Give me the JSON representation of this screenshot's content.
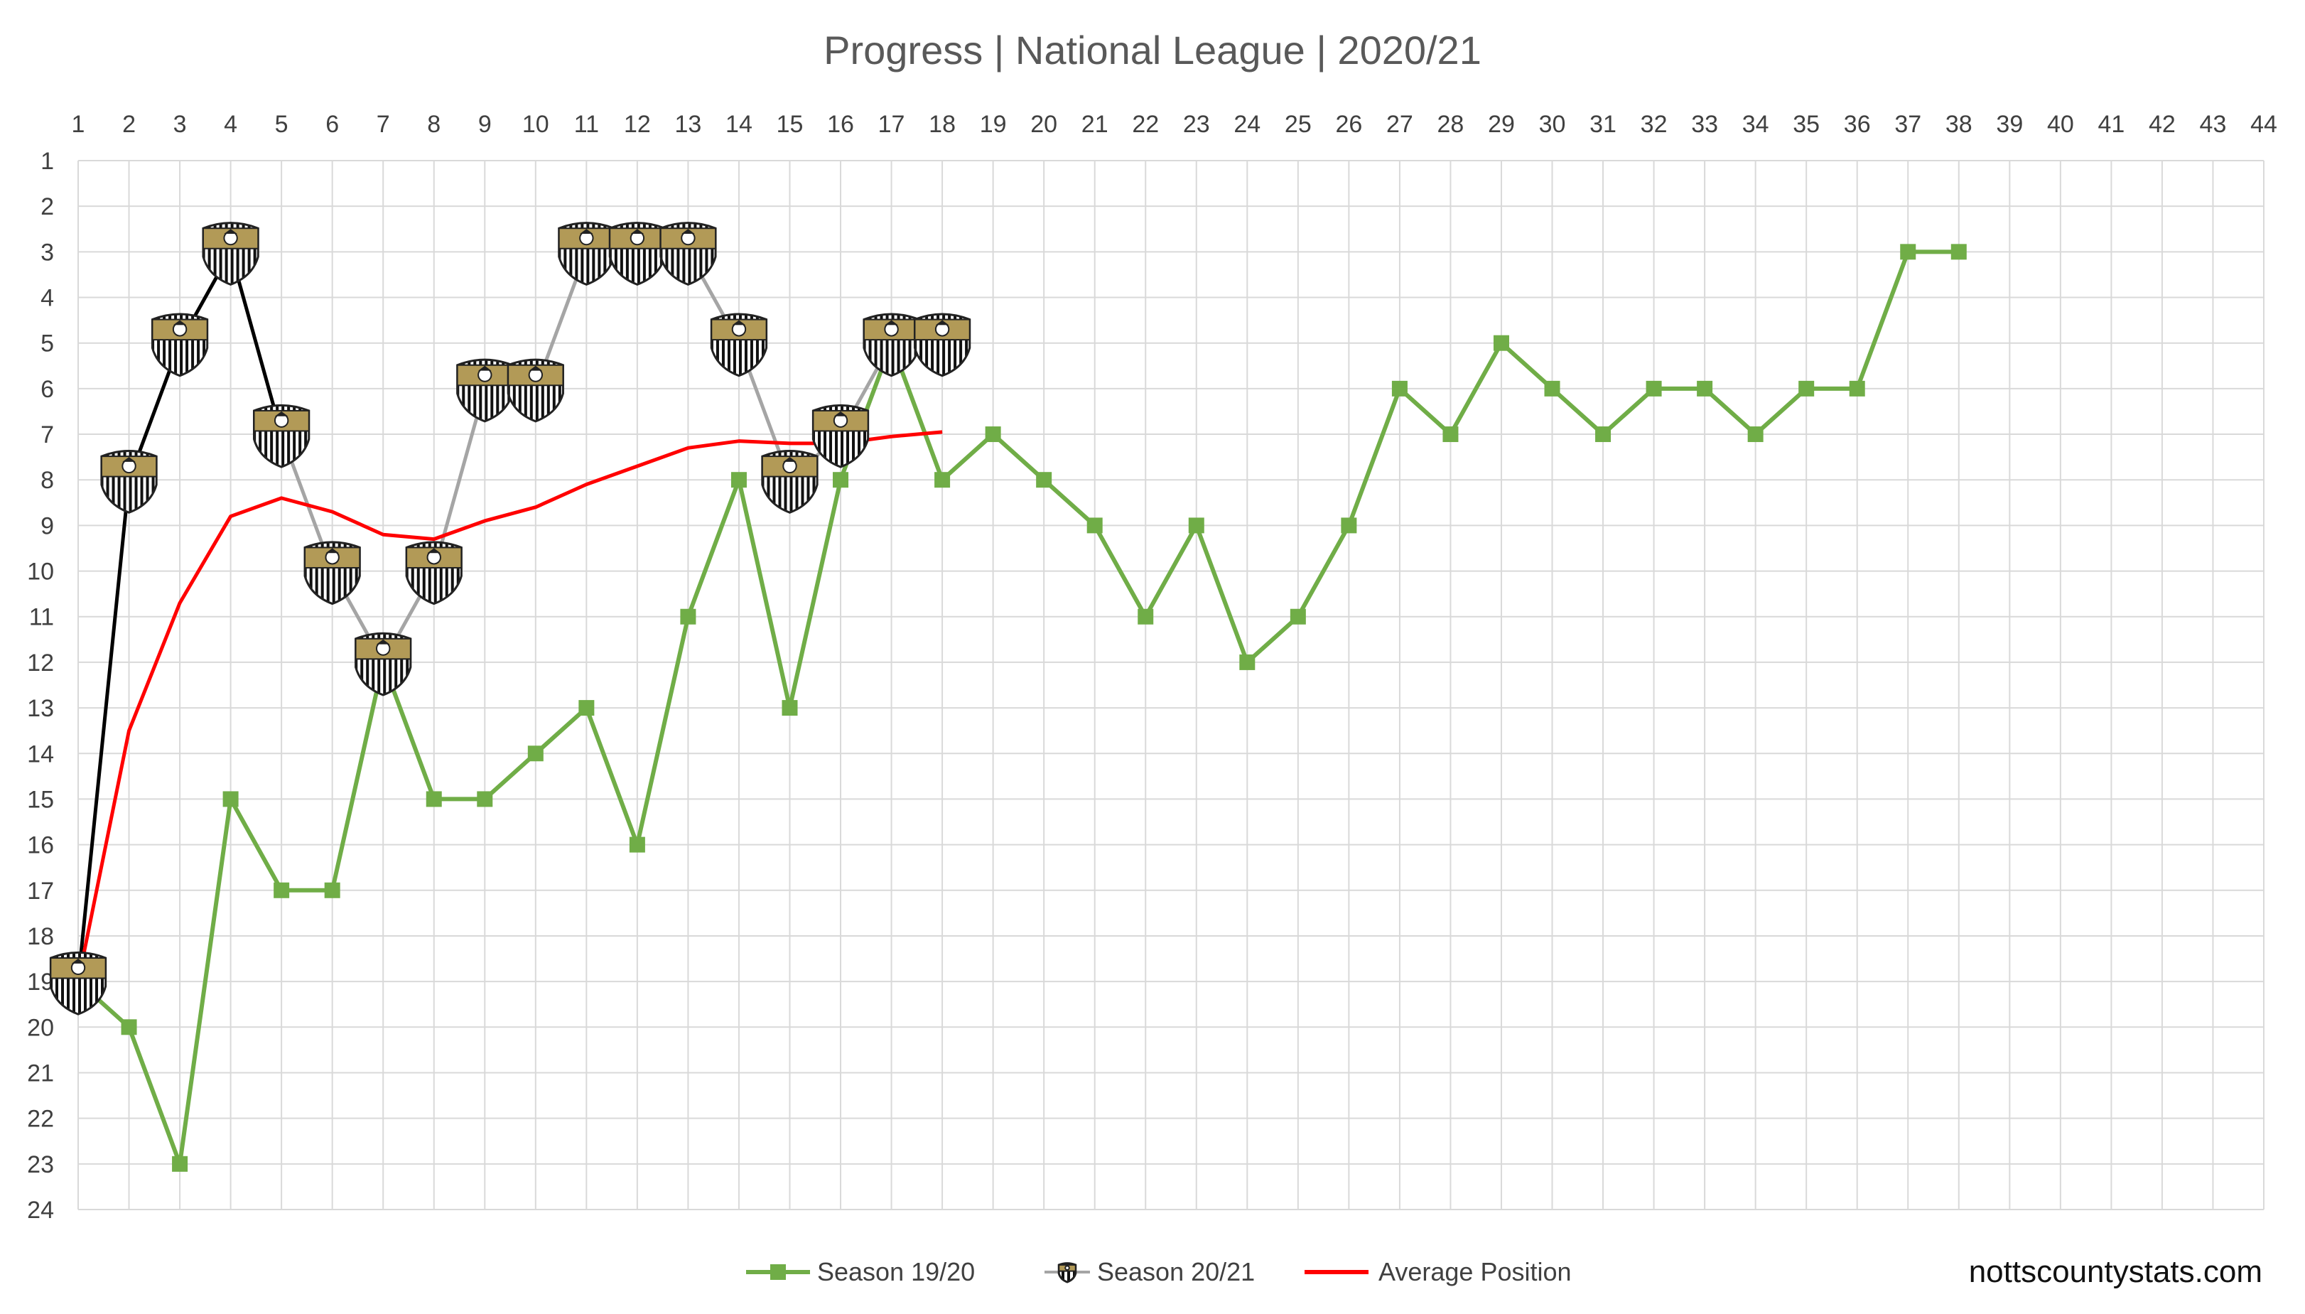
{
  "chart_data": {
    "type": "line",
    "title": "Progress | National League | 2020/21",
    "xlabel": "",
    "ylabel": "",
    "x_ticks": [
      1,
      2,
      3,
      4,
      5,
      6,
      7,
      8,
      9,
      10,
      11,
      12,
      13,
      14,
      15,
      16,
      17,
      18,
      19,
      20,
      21,
      22,
      23,
      24,
      25,
      26,
      27,
      28,
      29,
      30,
      31,
      32,
      33,
      34,
      35,
      36,
      37,
      38,
      39,
      40,
      41,
      42,
      43,
      44
    ],
    "y_ticks": [
      1,
      2,
      3,
      4,
      5,
      6,
      7,
      8,
      9,
      10,
      11,
      12,
      13,
      14,
      15,
      16,
      17,
      18,
      19,
      20,
      21,
      22,
      23,
      24
    ],
    "xlim": [
      1,
      44
    ],
    "ylim": [
      1,
      24
    ],
    "y_inverted": true,
    "grid": true,
    "legend_position": "bottom",
    "series": [
      {
        "name": "Season 19/20",
        "color": "#70AD47",
        "marker": "square",
        "x": [
          1,
          2,
          3,
          4,
          5,
          6,
          7,
          8,
          9,
          10,
          11,
          12,
          13,
          14,
          15,
          16,
          17,
          18,
          19,
          20,
          21,
          22,
          23,
          24,
          25,
          26,
          27,
          28,
          29,
          30,
          31,
          32,
          33,
          34,
          35,
          36,
          37,
          38
        ],
        "values": [
          19,
          20,
          23,
          15,
          17,
          17,
          12,
          15,
          15,
          14,
          13,
          16,
          11,
          8,
          13,
          8,
          5,
          8,
          7,
          8,
          9,
          11,
          9,
          12,
          11,
          9,
          6,
          7,
          5,
          6,
          7,
          6,
          6,
          7,
          6,
          6,
          3,
          3
        ]
      },
      {
        "name": "Season 20/21",
        "color": "#A5A5A5",
        "early_color": "#000000",
        "marker": "club-crest-icon",
        "x": [
          1,
          2,
          3,
          4,
          5,
          6,
          7,
          8,
          9,
          10,
          11,
          12,
          13,
          14,
          15,
          16,
          17,
          18
        ],
        "values": [
          19,
          8,
          5,
          3,
          7,
          10,
          12,
          10,
          6,
          6,
          3,
          3,
          3,
          5,
          8,
          7,
          5,
          5
        ]
      },
      {
        "name": "Average Position",
        "color": "#FF0000",
        "marker": "none",
        "x": [
          1,
          2,
          3,
          4,
          5,
          6,
          7,
          8,
          9,
          10,
          11,
          12,
          13,
          14,
          15,
          16,
          17,
          18
        ],
        "values": [
          19,
          13.5,
          10.7,
          8.8,
          8.4,
          8.7,
          9.2,
          9.3,
          8.9,
          8.6,
          8.1,
          7.7,
          7.3,
          7.15,
          7.2,
          7.2,
          7.05,
          6.95
        ]
      }
    ]
  },
  "watermark": "nottscountystats.com"
}
